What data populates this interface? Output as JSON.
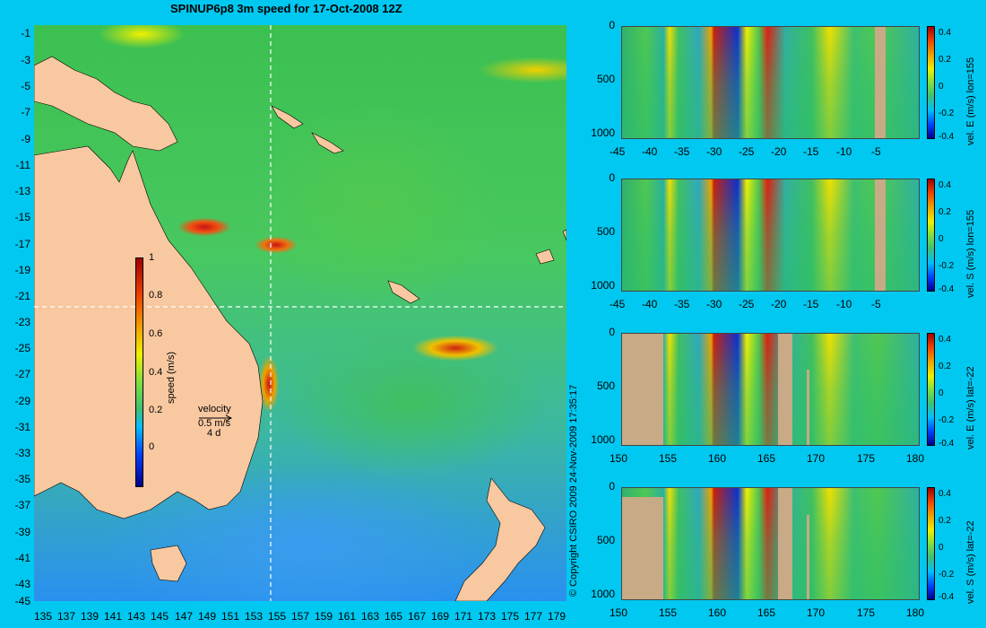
{
  "title": "SPINUP6p8 3m speed for 17-Oct-2008 12Z",
  "map": {
    "y_ticks": [
      "-1",
      "-3",
      "-5",
      "-7",
      "-9",
      "-11",
      "-13",
      "-15",
      "-17",
      "-19",
      "-21",
      "-23",
      "-25",
      "-27",
      "-29",
      "-31",
      "-33",
      "-35",
      "-37",
      "-39",
      "-41",
      "-43",
      "-45"
    ],
    "x_ticks": [
      "135",
      "137",
      "139",
      "141",
      "143",
      "145",
      "147",
      "149",
      "151",
      "153",
      "155",
      "157",
      "159",
      "161",
      "163",
      "165",
      "167",
      "169",
      "171",
      "173",
      "175",
      "177",
      "179"
    ],
    "colorbar": {
      "label": "speed (m/s)",
      "ticks": [
        "1",
        "0.8",
        "0.6",
        "0.4",
        "0.2",
        "0"
      ],
      "range": [
        -0.2,
        1
      ]
    },
    "velocity_key": {
      "title": "velocity",
      "speed": "0.5 m/s",
      "duration": "4 d"
    },
    "section_lines": {
      "lon": 155,
      "lat": -22
    },
    "colors": {
      "land": "#f8c8a0",
      "background": "#00c8f0"
    }
  },
  "copyright": "© Copyright CSIRO 2009   24-Nov-2009 17:35:17",
  "panels": [
    {
      "name": "vel. E (m/s) lon=155",
      "x_ticks": [
        "-45",
        "-40",
        "-35",
        "-30",
        "-25",
        "-20",
        "-15",
        "-10",
        "-5"
      ],
      "y_ticks": [
        "0",
        "500",
        "1000"
      ],
      "cbar_ticks": [
        "0.4",
        "0.2",
        "0",
        "-0.2",
        "-0.4"
      ]
    },
    {
      "name": "vel. S (m/s) lon=155",
      "x_ticks": [
        "-45",
        "-40",
        "-35",
        "-30",
        "-25",
        "-20",
        "-15",
        "-10",
        "-5"
      ],
      "y_ticks": [
        "0",
        "500",
        "1000"
      ],
      "cbar_ticks": [
        "0.4",
        "0.2",
        "0",
        "-0.2",
        "-0.4"
      ]
    },
    {
      "name": "vel. E (m/s) lat=-22",
      "x_ticks": [
        "150",
        "155",
        "160",
        "165",
        "170",
        "175",
        "180"
      ],
      "y_ticks": [
        "0",
        "500",
        "1000"
      ],
      "cbar_ticks": [
        "0.4",
        "0.2",
        "0",
        "-0.2",
        "-0.4"
      ]
    },
    {
      "name": "vel. S (m/s) lat=-22",
      "x_ticks": [
        "150",
        "155",
        "160",
        "165",
        "170",
        "175",
        "180"
      ],
      "y_ticks": [
        "0",
        "500",
        "1000"
      ],
      "cbar_ticks": [
        "0.4",
        "0.2",
        "0",
        "-0.2",
        "-0.4"
      ]
    }
  ]
}
